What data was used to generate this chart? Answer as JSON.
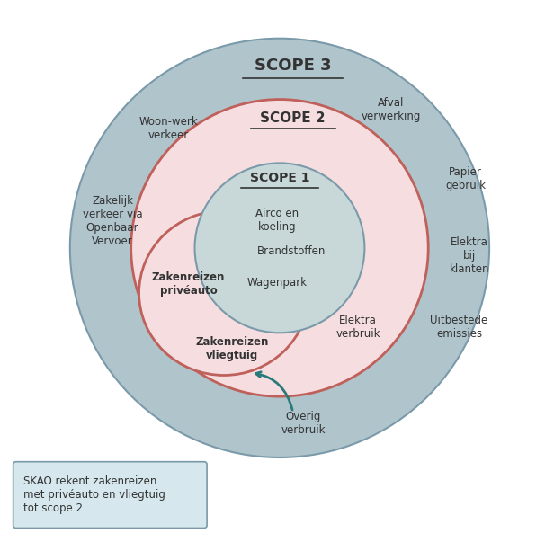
{
  "scope1_label": "SCOPE 1",
  "scope2_label": "SCOPE 2",
  "scope3_label": "SCOPE 3",
  "footnote": "SKAO rekent zakenreizen\nmet privéauto en vliegtuig\ntot scope 2",
  "bg_color": "#ffffff",
  "scope3_fill": "#b0c4cc",
  "scope3_edge": "#7a9aaa",
  "scope2_fill": "#f5dde0",
  "scope2_edge": "#c0605a",
  "scope1_fill": "#c8d8d8",
  "scope1_edge": "#7a9aaa",
  "blob_fill": "#f5dde0",
  "blob_edge": "#c0605a",
  "note_fill": "#d6e8ee",
  "note_edge": "#7a9aaa",
  "arrow_color": "#2a7a7a",
  "text_color": "#333333"
}
